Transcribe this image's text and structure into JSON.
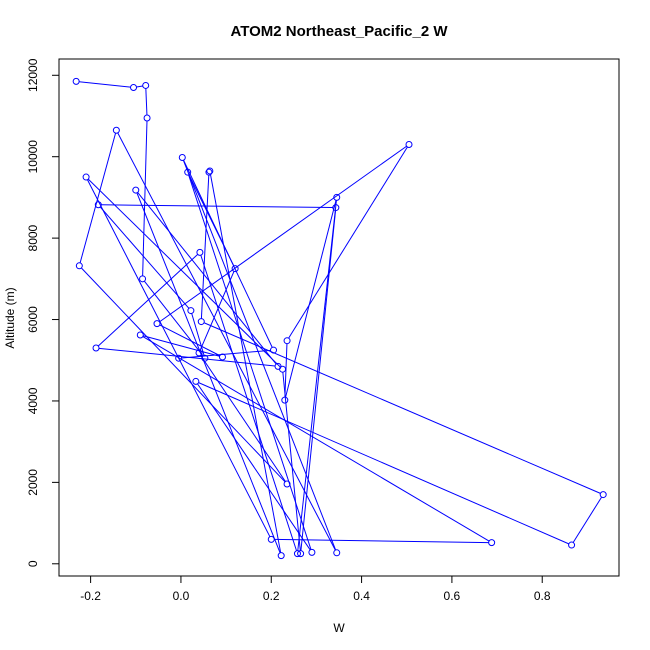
{
  "chart_data": {
    "type": "line",
    "title": "ATOM2 Northeast_Pacific_2 W",
    "xlabel": "W",
    "ylabel": "Altitude (m)",
    "xlim": [
      -0.27,
      0.97
    ],
    "ylim": [
      -300,
      12400
    ],
    "xticks": [
      -0.2,
      0.0,
      0.2,
      0.4,
      0.6,
      0.8
    ],
    "xtick_labels": [
      "-0.2",
      "0.0",
      "0.2",
      "0.4",
      "0.6",
      "0.8"
    ],
    "yticks": [
      0,
      2000,
      4000,
      6000,
      8000,
      10000,
      12000
    ],
    "ytick_labels": [
      "0",
      "2000",
      "4000",
      "6000",
      "8000",
      "10000",
      "12000"
    ],
    "grid": false,
    "marker": "open-circle",
    "series": [
      {
        "color": "#0000ff",
        "points": [
          {
            "x": -0.232,
            "y": 11850
          },
          {
            "x": -0.105,
            "y": 11700
          },
          {
            "x": -0.078,
            "y": 11750
          },
          {
            "x": -0.075,
            "y": 10950
          },
          {
            "x": -0.085,
            "y": 7000
          },
          {
            "x": 0.053,
            "y": 5050
          },
          {
            "x": 0.022,
            "y": 6220
          },
          {
            "x": -0.183,
            "y": 8820
          },
          {
            "x": 0.343,
            "y": 8750
          },
          {
            "x": 0.265,
            "y": 250
          },
          {
            "x": 0.225,
            "y": 4780
          },
          {
            "x": -0.21,
            "y": 9500
          },
          {
            "x": 0.2,
            "y": 600
          },
          {
            "x": 0.688,
            "y": 520
          },
          {
            "x": -0.09,
            "y": 5620
          },
          {
            "x": 0.092,
            "y": 5080
          },
          {
            "x": -0.053,
            "y": 5900
          },
          {
            "x": 0.505,
            "y": 10300
          },
          {
            "x": 0.235,
            "y": 5480
          },
          {
            "x": 0.23,
            "y": 4020
          },
          {
            "x": 0.345,
            "y": 9000
          },
          {
            "x": 0.258,
            "y": 250
          },
          {
            "x": 0.042,
            "y": 7650
          },
          {
            "x": -0.188,
            "y": 5300
          },
          {
            "x": 0.215,
            "y": 4850
          },
          {
            "x": -0.1,
            "y": 9180
          },
          {
            "x": 0.222,
            "y": 200
          },
          {
            "x": 0.064,
            "y": 9650
          },
          {
            "x": 0.062,
            "y": 9620
          },
          {
            "x": 0.045,
            "y": 5950
          },
          {
            "x": 0.935,
            "y": 1700
          },
          {
            "x": 0.865,
            "y": 460
          },
          {
            "x": 0.033,
            "y": 4480
          },
          {
            "x": 0.29,
            "y": 280
          },
          {
            "x": 0.015,
            "y": 9620
          },
          {
            "x": 0.12,
            "y": 7250
          },
          {
            "x": 0.04,
            "y": 5180
          },
          {
            "x": 0.235,
            "y": 1960
          },
          {
            "x": -0.225,
            "y": 7320
          },
          {
            "x": -0.143,
            "y": 10650
          },
          {
            "x": 0.345,
            "y": 270
          },
          {
            "x": 0.003,
            "y": 9980
          },
          {
            "x": 0.205,
            "y": 5250
          },
          {
            "x": -0.005,
            "y": 5050
          }
        ]
      }
    ]
  }
}
